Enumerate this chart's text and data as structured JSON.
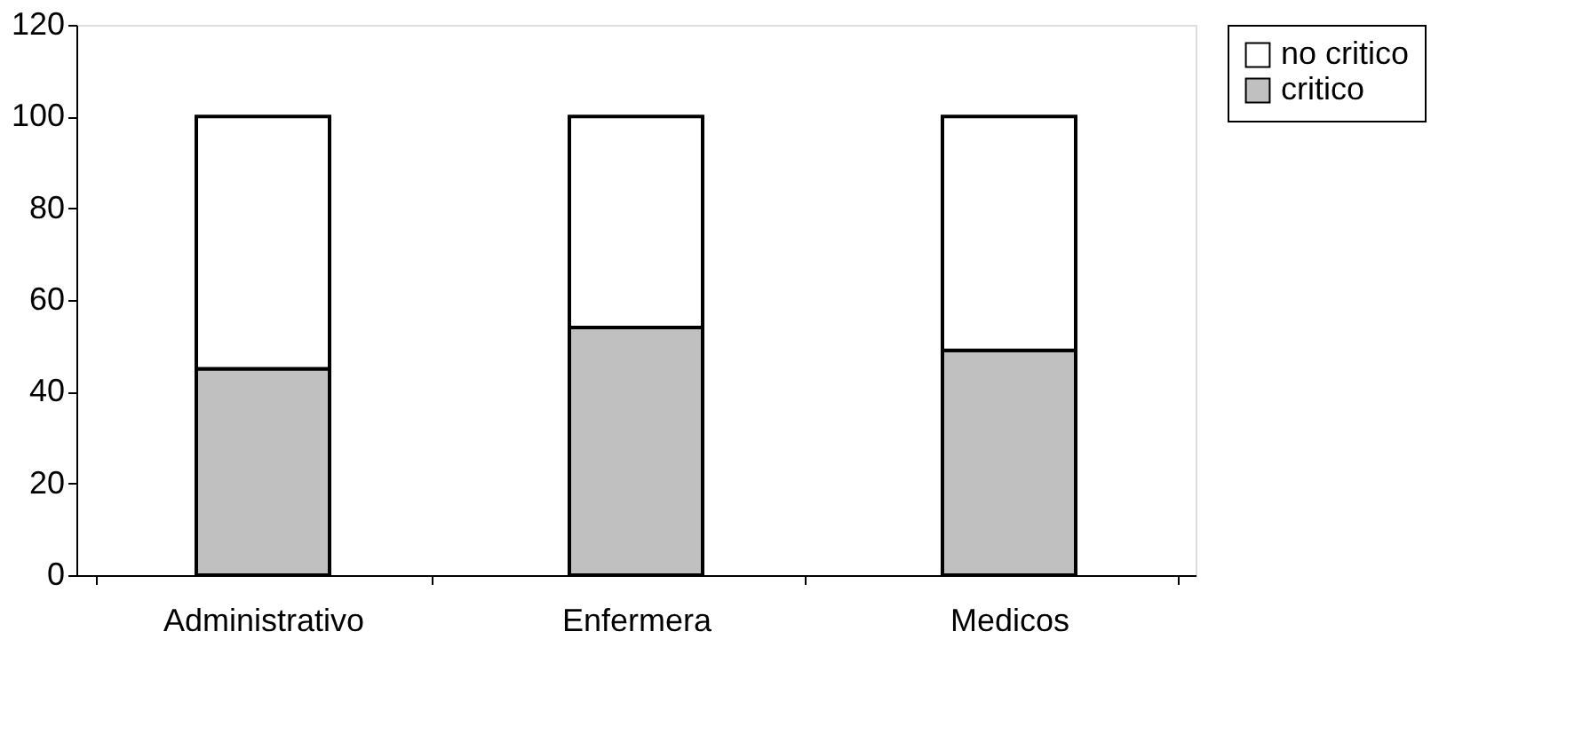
{
  "chart_data": {
    "type": "bar",
    "stacked": true,
    "categories": [
      "Administrativo",
      "Enfermera",
      "Medicos"
    ],
    "series": [
      {
        "name": "critico",
        "color": "#c0c0c0",
        "values": [
          45,
          54,
          49
        ]
      },
      {
        "name": "no critico",
        "color": "#ffffff",
        "values": [
          55,
          46,
          51
        ]
      }
    ],
    "ylim": [
      0,
      120
    ],
    "yticks": [
      0,
      20,
      40,
      60,
      80,
      100,
      120
    ],
    "grid": false,
    "legend": "right"
  }
}
